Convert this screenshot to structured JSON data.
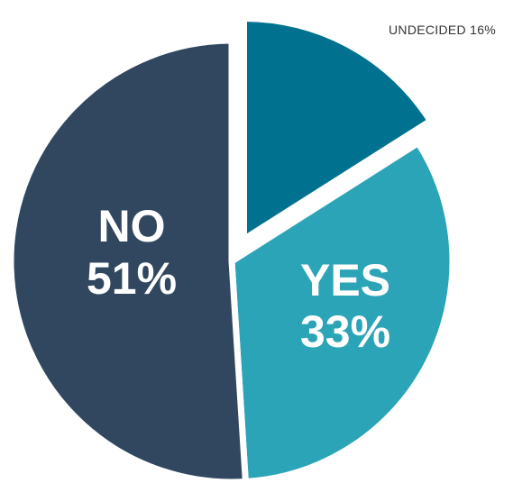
{
  "chart_data": {
    "type": "pie",
    "title": "",
    "slices": [
      {
        "label": "UNDECIDED",
        "value": 16,
        "display": "UNDECIDED 16%",
        "color": "#00718F",
        "exploded": true
      },
      {
        "label": "YES",
        "value": 33,
        "display_name": "YES",
        "display_value": "33%",
        "color": "#2BA4B8",
        "exploded": false
      },
      {
        "label": "NO",
        "value": 51,
        "display_name": "NO",
        "display_value": "51%",
        "color": "#31475F",
        "exploded": false
      }
    ],
    "start_angle_deg": 0,
    "direction": "clockwise",
    "legend": "none"
  }
}
